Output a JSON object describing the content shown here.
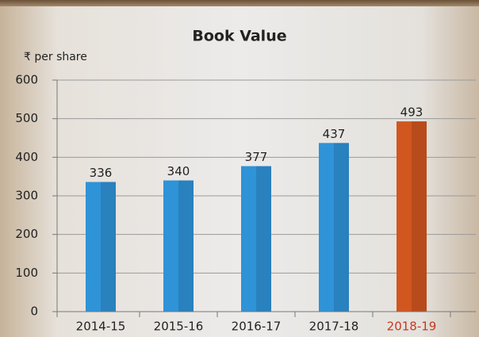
{
  "chart_data": {
    "type": "bar",
    "title": "Book Value",
    "ylabel": "₹ per share",
    "categories": [
      "2014-15",
      "2015-16",
      "2016-17",
      "2017-18",
      "2018-19"
    ],
    "values": [
      336,
      340,
      377,
      437,
      493
    ],
    "colors": [
      "#2f93d8",
      "#2f93d8",
      "#2f93d8",
      "#2f93d8",
      "#d2561f"
    ],
    "label_colors": [
      "#222222",
      "#222222",
      "#222222",
      "#222222",
      "#c8381e"
    ],
    "ylim": [
      0,
      600
    ],
    "yticks": [
      0,
      100,
      200,
      300,
      400,
      500,
      600
    ],
    "grid": true
  }
}
